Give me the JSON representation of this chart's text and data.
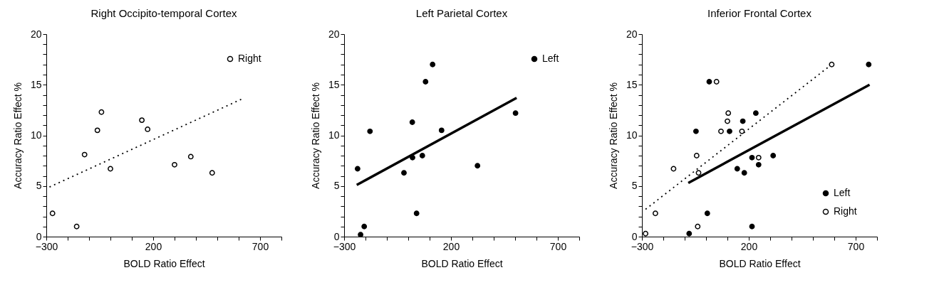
{
  "chart_data": [
    {
      "type": "scatter",
      "title": "Right Occipito-temporal Cortex",
      "xlabel": "BOLD Ratio Effect",
      "ylabel": "Accuracy Ratio Effect %",
      "legend": "top right",
      "grid": false,
      "xlim": [
        -300,
        800
      ],
      "xticks": [
        -300,
        {
          "value": -200,
          "label": null
        },
        {
          "value": -100,
          "label": null
        },
        {
          "value": 0,
          "label": null
        },
        {
          "value": 100,
          "label": null
        },
        200,
        {
          "value": 300,
          "label": null
        },
        {
          "value": 400,
          "label": null
        },
        {
          "value": 500,
          "label": null
        },
        {
          "value": 600,
          "label": null
        },
        700,
        {
          "value": 800,
          "label": null
        }
      ],
      "ylim": [
        0,
        20
      ],
      "yticks": [
        0,
        {
          "value": 1,
          "label": null
        },
        {
          "value": 2,
          "label": null
        },
        {
          "value": 3,
          "label": null
        },
        {
          "value": 4,
          "label": null
        },
        5,
        {
          "value": 6,
          "label": null
        },
        {
          "value": 7,
          "label": null
        },
        {
          "value": 8,
          "label": null
        },
        {
          "value": 9,
          "label": null
        },
        10,
        {
          "value": 11,
          "label": null
        },
        {
          "value": 12,
          "label": null
        },
        {
          "value": 13,
          "label": null
        },
        {
          "value": 14,
          "label": null
        },
        15,
        {
          "value": 16,
          "label": null
        },
        {
          "value": 17,
          "label": null
        },
        {
          "value": 18,
          "label": null
        },
        {
          "value": 19,
          "label": null
        },
        20
      ],
      "series": [
        {
          "name": "Right",
          "color": "#ffffff",
          "marker": "circle",
          "x": [
            -271,
            -158,
            -121,
            -61,
            -42,
            0,
            147,
            174,
            300,
            376,
            476
          ],
          "values": [
            2.3,
            1.0,
            8.1,
            10.5,
            12.3,
            6.7,
            11.5,
            10.6,
            7.1,
            7.9,
            6.3
          ]
        },
        {
          "type": "line",
          "color": "#000000",
          "line_style": "dotted",
          "x": [
            -285,
            616
          ],
          "values": [
            4.9,
            13.6
          ]
        }
      ]
    },
    {
      "type": "scatter",
      "title": "Left Parietal Cortex",
      "xlabel": "BOLD Ratio Effect",
      "ylabel": "Accuracy Ratio Effect %",
      "legend": "top right",
      "grid": false,
      "xlim": [
        -300,
        800
      ],
      "xticks": [
        -300,
        {
          "value": -200,
          "label": null
        },
        {
          "value": -100,
          "label": null
        },
        {
          "value": 0,
          "label": null
        },
        {
          "value": 100,
          "label": null
        },
        200,
        {
          "value": 300,
          "label": null
        },
        {
          "value": 400,
          "label": null
        },
        {
          "value": 500,
          "label": null
        },
        {
          "value": 600,
          "label": null
        },
        700,
        {
          "value": 800,
          "label": null
        }
      ],
      "ylim": [
        0,
        20
      ],
      "yticks": [
        0,
        {
          "value": 1,
          "label": null
        },
        {
          "value": 2,
          "label": null
        },
        {
          "value": 3,
          "label": null
        },
        {
          "value": 4,
          "label": null
        },
        5,
        {
          "value": 6,
          "label": null
        },
        {
          "value": 7,
          "label": null
        },
        {
          "value": 8,
          "label": null
        },
        {
          "value": 9,
          "label": null
        },
        10,
        {
          "value": 11,
          "label": null
        },
        {
          "value": 12,
          "label": null
        },
        {
          "value": 13,
          "label": null
        },
        {
          "value": 14,
          "label": null
        },
        15,
        {
          "value": 16,
          "label": null
        },
        {
          "value": 17,
          "label": null
        },
        {
          "value": 18,
          "label": null
        },
        {
          "value": 19,
          "label": null
        },
        20
      ],
      "series": [
        {
          "name": "Left",
          "color": "#000000",
          "marker": "circle",
          "x": [
            -237,
            -223,
            -206,
            -179,
            -20,
            19,
            20,
            39,
            66,
            81,
            114,
            156,
            324,
            502
          ],
          "values": [
            6.7,
            0.2,
            1.0,
            10.4,
            6.3,
            11.3,
            7.8,
            2.3,
            8.0,
            15.3,
            17.0,
            10.5,
            7.0,
            12.2
          ]
        },
        {
          "type": "line",
          "color": "#000000",
          "line_style": "solid",
          "x": [
            -241,
            507
          ],
          "values": [
            5.1,
            13.7
          ]
        }
      ]
    },
    {
      "type": "scatter",
      "title": "Inferior Frontal Cortex",
      "xlabel": "BOLD Ratio Effect",
      "ylabel": "Accuracy Ratio Effect %",
      "legend": "bottom right",
      "grid": false,
      "xlim": [
        -300,
        800
      ],
      "xticks": [
        -300,
        {
          "value": -200,
          "label": null
        },
        {
          "value": -100,
          "label": null
        },
        {
          "value": 0,
          "label": null
        },
        {
          "value": 100,
          "label": null
        },
        200,
        {
          "value": 300,
          "label": null
        },
        {
          "value": 400,
          "label": null
        },
        {
          "value": 500,
          "label": null
        },
        {
          "value": 600,
          "label": null
        },
        700,
        {
          "value": 800,
          "label": null
        }
      ],
      "ylim": [
        0,
        20
      ],
      "yticks": [
        0,
        {
          "value": 1,
          "label": null
        },
        {
          "value": 2,
          "label": null
        },
        {
          "value": 3,
          "label": null
        },
        {
          "value": 4,
          "label": null
        },
        5,
        {
          "value": 6,
          "label": null
        },
        {
          "value": 7,
          "label": null
        },
        {
          "value": 8,
          "label": null
        },
        {
          "value": 9,
          "label": null
        },
        10,
        {
          "value": 11,
          "label": null
        },
        {
          "value": 12,
          "label": null
        },
        {
          "value": 13,
          "label": null
        },
        {
          "value": 14,
          "label": null
        },
        15,
        {
          "value": 16,
          "label": null
        },
        {
          "value": 17,
          "label": null
        },
        {
          "value": 18,
          "label": null
        },
        {
          "value": 19,
          "label": null
        },
        20
      ],
      "series": [
        {
          "name": "Left",
          "color": "#000000",
          "marker": "circle",
          "x": [
            -79,
            -47,
            6,
            15,
            110,
            146,
            172,
            179,
            215,
            215,
            233,
            246,
            314,
            761
          ],
          "values": [
            0.3,
            10.4,
            2.3,
            15.3,
            10.4,
            6.7,
            11.4,
            6.3,
            1.0,
            7.8,
            12.2,
            7.1,
            8.0,
            17.0
          ]
        },
        {
          "name": "Right",
          "color": "#ffffff",
          "marker": "circle",
          "x": [
            -283,
            -237,
            -152,
            -44,
            -39,
            -35,
            49,
            70,
            100,
            104,
            168,
            246,
            588
          ],
          "values": [
            0.3,
            2.3,
            6.7,
            8.0,
            1.0,
            6.3,
            15.3,
            10.4,
            11.4,
            12.2,
            10.4,
            7.8,
            17.0
          ]
        },
        {
          "type": "line",
          "color": "#000000",
          "line_style": "solid",
          "x": [
            -83,
            765
          ],
          "values": [
            5.3,
            15.0
          ]
        },
        {
          "type": "line",
          "color": "#000000",
          "line_style": "dotted",
          "x": [
            -283,
            588
          ],
          "values": [
            2.7,
            17.0
          ]
        }
      ]
    }
  ]
}
